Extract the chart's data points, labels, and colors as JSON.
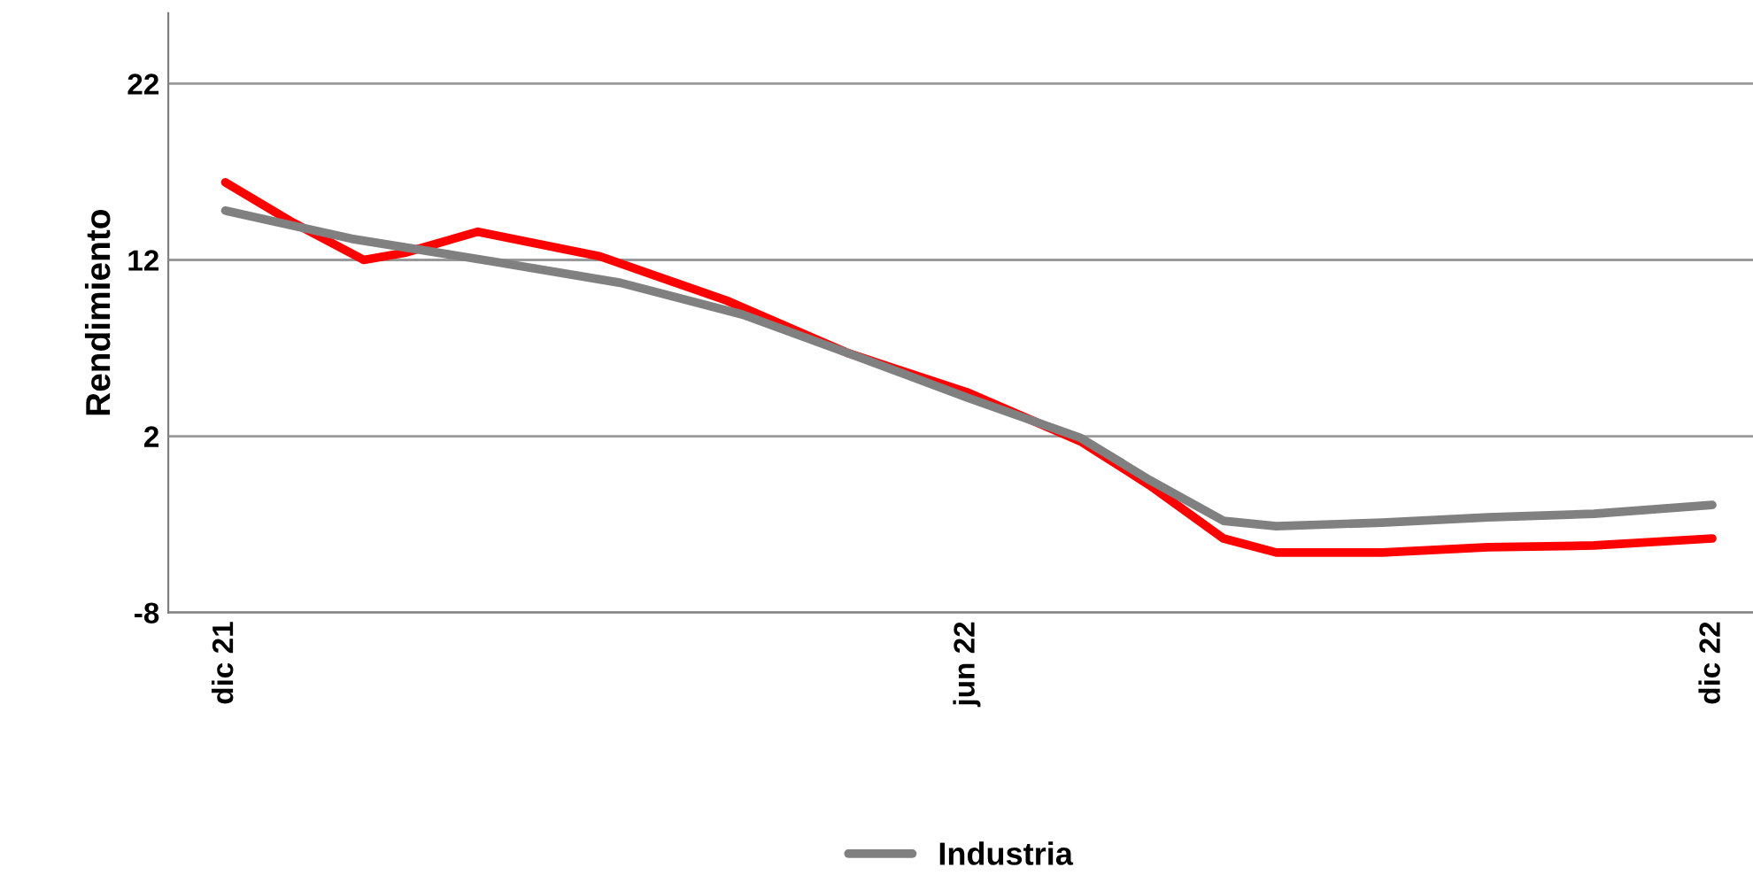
{
  "chart_data": {
    "type": "line",
    "ylabel": "Rendimiento",
    "ylim": [
      -8,
      26
    ],
    "yticks": [
      -8,
      2,
      12,
      22
    ],
    "xlim": [
      "2021-11-17",
      "2022-12-11"
    ],
    "xticks": [
      {
        "value": "2021-12-01",
        "label": "dic 21"
      },
      {
        "value": "2022-06-01",
        "label": "jun 22"
      },
      {
        "value": "2022-12-01",
        "label": "dic 22"
      }
    ],
    "grid": "y",
    "legend": "bottom",
    "marker": "none",
    "line_style": "solid",
    "series": [
      {
        "color": "#ff0000",
        "x": [
          "2021-12-01",
          "2021-12-17",
          "2022-01-04",
          "2022-01-14",
          "2022-02-01",
          "2022-03-03",
          "2022-04-03",
          "2022-05-03",
          "2022-06-01",
          "2022-06-29",
          "2022-07-16",
          "2022-08-03",
          "2022-08-16",
          "2022-09-11",
          "2022-10-07",
          "2022-11-02",
          "2022-12-01"
        ],
        "values": [
          16.4,
          14.2,
          12.0,
          12.4,
          13.6,
          12.2,
          9.7,
          6.7,
          4.5,
          1.7,
          -0.8,
          -3.8,
          -4.6,
          -4.6,
          -4.3,
          -4.2,
          -3.8
        ]
      },
      {
        "name": "Industria",
        "color": "#808080",
        "x": [
          "2021-12-01",
          "2022-01-01",
          "2022-02-05",
          "2022-03-08",
          "2022-04-07",
          "2022-05-03",
          "2022-06-01",
          "2022-06-29",
          "2022-07-16",
          "2022-08-03",
          "2022-08-16",
          "2022-09-11",
          "2022-10-07",
          "2022-11-02",
          "2022-12-01"
        ],
        "values": [
          14.8,
          13.2,
          11.9,
          10.7,
          8.9,
          6.7,
          4.2,
          1.9,
          -0.5,
          -2.8,
          -3.1,
          -2.9,
          -2.6,
          -2.4,
          -1.9
        ]
      }
    ]
  }
}
